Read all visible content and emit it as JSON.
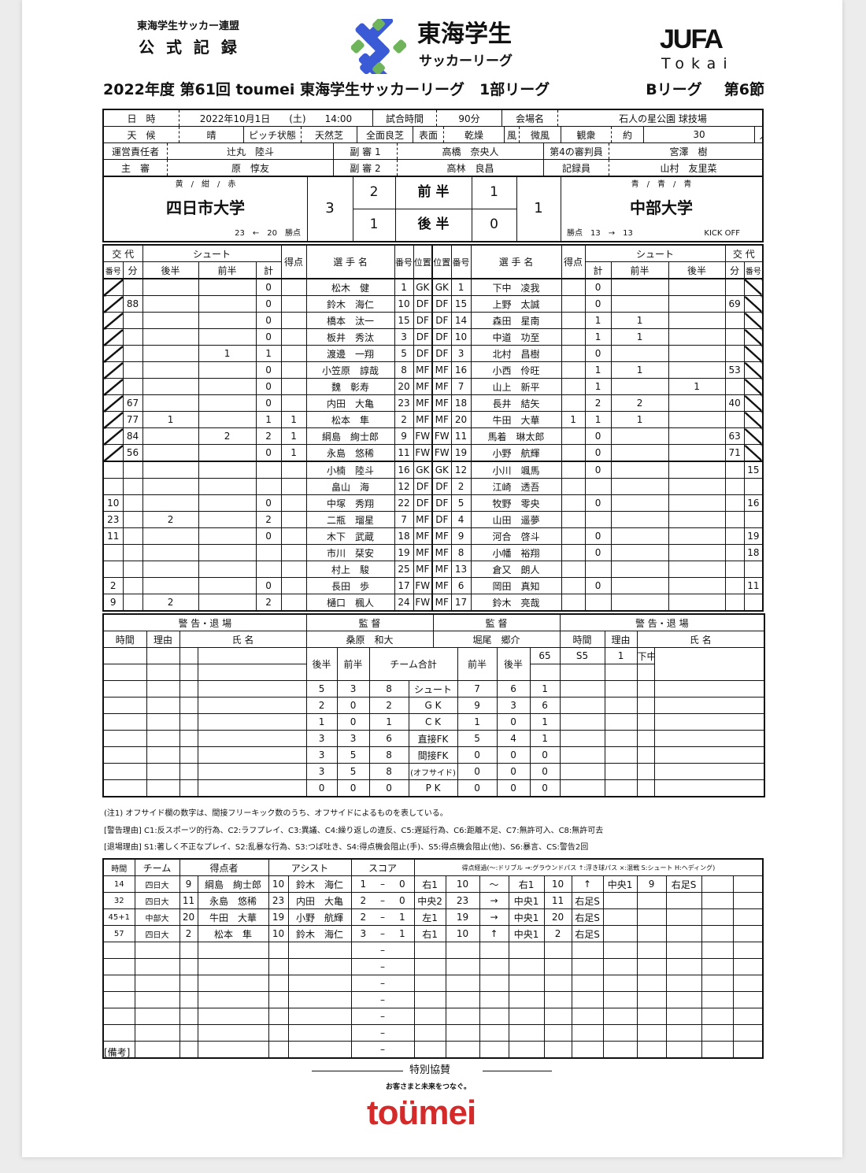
{
  "header": {
    "federation": "東海学生サッカー連盟",
    "record_title": "公 式 記 録",
    "league_logo_line1": "東海学生",
    "league_logo_line2": "サッカーリーグ",
    "jufa_logo": "JUFA",
    "jufa_sub": "Tokai",
    "title": "2022年度 第61回 toumei 東海学生サッカーリーグ　1部リーグ",
    "group": "Bリーグ",
    "round": "第6節",
    "logo_colors": {
      "blue": "#3b5bd6",
      "green": "#6fb35a"
    }
  },
  "info": {
    "date_label": "日　時",
    "date": "2022年10月1日　　(土)　　14:00",
    "duration_label": "試合時間",
    "duration": "90分",
    "venue_label": "会場名",
    "venue": "石人の星公園 球技場",
    "weather_label": "天　候",
    "weather": "晴",
    "pitch_label": "ピッチ状態",
    "pitch": "天然芝",
    "pitch_quality": "全面良芝",
    "surface_label": "表面",
    "surface": "乾燥",
    "wind_label": "風",
    "wind": "微風",
    "crowd_label": "観衆",
    "crowd_approx": "約",
    "crowd": "30",
    "crowd_unit": "人",
    "manager_label": "運営責任者",
    "manager": "辻丸　陸斗",
    "ar1_label": "副 審 1",
    "ar1": "高橋　奈央人",
    "fourth_label": "第4の審判員",
    "fourth": "宮澤　樹",
    "referee_label": "主　審",
    "referee": "原　惇友",
    "ar2_label": "副 審 2",
    "ar2": "高林　良昌",
    "recorder_label": "記録員",
    "recorder": "山村　友里菜"
  },
  "score": {
    "home_colors": "黄　/　紺　/　赤",
    "home": "四日市大学",
    "home_points": "23　←　20　勝点",
    "home_total": "3",
    "away_colors": "青　/　青　/　青",
    "away": "中部大学",
    "away_points": "勝点　13　→　13",
    "kickoff": "KICK OFF",
    "away_total": "1",
    "first_half_label": "前 半",
    "second_half_label": "後 半",
    "home_first": "2",
    "away_first": "1",
    "home_second": "1",
    "away_second": "0"
  },
  "players_header": {
    "sub": "交 代",
    "sub_no": "番号",
    "sub_min": "分",
    "shoot": "シュート",
    "second": "後半",
    "first": "前半",
    "total": "計",
    "goals": "得点",
    "name": "選 手 名",
    "num": "番号",
    "pos": "位置"
  },
  "home_players": [
    [
      "",
      "",
      "",
      "",
      "0",
      "",
      "松木　健",
      "1",
      "GK"
    ],
    [
      "",
      "88",
      "",
      "",
      "0",
      "",
      "鈴木　海仁",
      "10",
      "DF"
    ],
    [
      "",
      "",
      "",
      "",
      "0",
      "",
      "橋本　汰一",
      "15",
      "DF"
    ],
    [
      "",
      "",
      "",
      "",
      "0",
      "",
      "板井　秀汰",
      "3",
      "DF"
    ],
    [
      "",
      "",
      "",
      "1",
      "1",
      "",
      "渡邊　一翔",
      "5",
      "DF"
    ],
    [
      "",
      "",
      "",
      "",
      "0",
      "",
      "小笠原　諄哉",
      "8",
      "MF"
    ],
    [
      "",
      "",
      "",
      "",
      "0",
      "",
      "魏　彰寿",
      "20",
      "MF"
    ],
    [
      "",
      "67",
      "",
      "",
      "0",
      "",
      "内田　大亀",
      "23",
      "MF"
    ],
    [
      "",
      "77",
      "1",
      "",
      "1",
      "1",
      "松本　隼",
      "2",
      "MF"
    ],
    [
      "",
      "84",
      "",
      "2",
      "2",
      "1",
      "綱島　絢士郎",
      "9",
      "FW"
    ],
    [
      "",
      "56",
      "",
      "",
      "0",
      "1",
      "永島　悠稀",
      "11",
      "FW"
    ],
    [
      "",
      "",
      "",
      "",
      "",
      "",
      "小楠　陸斗",
      "16",
      "GK"
    ],
    [
      "",
      "",
      "",
      "",
      "",
      "",
      "畠山　海",
      "12",
      "DF"
    ],
    [
      "10",
      "",
      "",
      "",
      "0",
      "",
      "中塚　秀翔",
      "22",
      "DF"
    ],
    [
      "23",
      "",
      "2",
      "",
      "2",
      "",
      "二瓶　瑠星",
      "7",
      "MF"
    ],
    [
      "11",
      "",
      "",
      "",
      "0",
      "",
      "木下　武蔵",
      "18",
      "MF"
    ],
    [
      "",
      "",
      "",
      "",
      "",
      "",
      "市川　栞安",
      "19",
      "MF"
    ],
    [
      "",
      "",
      "",
      "",
      "",
      "",
      "村上　駿",
      "25",
      "MF"
    ],
    [
      "2",
      "",
      "",
      "",
      "0",
      "",
      "長田　歩",
      "17",
      "FW"
    ],
    [
      "9",
      "",
      "2",
      "",
      "2",
      "",
      "樋口　楓人",
      "24",
      "FW"
    ]
  ],
  "away_players": [
    [
      "GK",
      "1",
      "下中　凌我",
      "",
      "0",
      "",
      "",
      "",
      ""
    ],
    [
      "DF",
      "15",
      "上野　太誠",
      "",
      "0",
      "",
      "",
      "69",
      ""
    ],
    [
      "DF",
      "14",
      "森田　星南",
      "",
      "1",
      "1",
      "",
      "",
      ""
    ],
    [
      "DF",
      "10",
      "中道　功至",
      "",
      "1",
      "1",
      "",
      "",
      ""
    ],
    [
      "DF",
      "3",
      "北村　昌樹",
      "",
      "0",
      "",
      "",
      "",
      ""
    ],
    [
      "MF",
      "16",
      "小西　伶旺",
      "",
      "1",
      "1",
      "",
      "53",
      ""
    ],
    [
      "MF",
      "7",
      "山上　新平",
      "",
      "1",
      "",
      "1",
      "",
      ""
    ],
    [
      "MF",
      "18",
      "長井　結矢",
      "",
      "2",
      "2",
      "",
      "40",
      ""
    ],
    [
      "MF",
      "20",
      "牛田　大華",
      "1",
      "1",
      "1",
      "",
      "",
      ""
    ],
    [
      "FW",
      "11",
      "馬着　琳太郎",
      "",
      "0",
      "",
      "",
      "63",
      ""
    ],
    [
      "FW",
      "19",
      "小野　航輝",
      "",
      "0",
      "",
      "",
      "71",
      ""
    ],
    [
      "GK",
      "12",
      "小川　颯馬",
      "",
      "0",
      "",
      "",
      "",
      "15"
    ],
    [
      "DF",
      "2",
      "江崎　透吾",
      "",
      "",
      "",
      "",
      "",
      ""
    ],
    [
      "DF",
      "5",
      "牧野　零央",
      "",
      "0",
      "",
      "",
      "",
      "16"
    ],
    [
      "DF",
      "4",
      "山田　遥夢",
      "",
      "",
      "",
      "",
      "",
      ""
    ],
    [
      "MF",
      "9",
      "河合　啓斗",
      "",
      "0",
      "",
      "",
      "",
      "19"
    ],
    [
      "MF",
      "8",
      "小幡　裕翔",
      "",
      "0",
      "",
      "",
      "",
      "18"
    ],
    [
      "MF",
      "13",
      "倉又　朗人",
      "",
      "",
      "",
      "",
      "",
      ""
    ],
    [
      "MF",
      "6",
      "岡田　真知",
      "",
      "0",
      "",
      "",
      "",
      "11"
    ],
    [
      "MF",
      "17",
      "鈴木　亮哉",
      "",
      "",
      "",
      "",
      "",
      ""
    ]
  ],
  "cards": {
    "title": "警 告・退 場",
    "time": "時間",
    "reason": "理由",
    "name": "氏 名",
    "home": [],
    "away": [
      [
        "65",
        "S5",
        "1",
        "下中　凌我"
      ]
    ]
  },
  "coaches": {
    "label": "監 督",
    "home": "桑原　和大",
    "away": "堀尾　郷介"
  },
  "stats": {
    "second": "後半",
    "first": "前半",
    "team_total": "チーム合計",
    "rows": [
      [
        "5",
        "3",
        "8",
        "シュート",
        "7",
        "6",
        "1"
      ],
      [
        "2",
        "0",
        "2",
        "G K",
        "9",
        "3",
        "6"
      ],
      [
        "1",
        "0",
        "1",
        "C K",
        "1",
        "0",
        "1"
      ],
      [
        "3",
        "3",
        "6",
        "直接FK",
        "5",
        "4",
        "1"
      ],
      [
        "3",
        "5",
        "8",
        "間接FK",
        "0",
        "0",
        "0"
      ],
      [
        "3",
        "5",
        "8",
        "(オフサイド)",
        "0",
        "0",
        "0"
      ],
      [
        "0",
        "0",
        "0",
        "P K",
        "0",
        "0",
        "0"
      ]
    ]
  },
  "notes": [
    "(注1) オフサイド欄の数字は、間接フリーキック数のうち、オフサイドによるものを表している。",
    "[警告理由] C1:反スポーツ的行為、C2:ラフプレイ、C3:異議、C4:繰り返しの違反、C5:遅延行為、C6:距離不足、C7:無許可入、C8:無許可去",
    "[退場理由] S1:著しく不正なプレイ、S2:乱暴な行為、S3:つば吐き、S4:得点機会阻止(手)、S5:得点機会阻止(他)、S6:暴言、CS:警告2回"
  ],
  "goals": {
    "time": "時間",
    "team": "チーム",
    "scorer": "得点者",
    "assist": "アシスト",
    "score": "スコア",
    "process": "得点経過(〜:ドリブル →:グラウンドパス ↑:浮き球パス ×:混戦 S:シュート H:ヘディング)",
    "rows": [
      [
        "14",
        "四日大",
        "9",
        "綱島　絢士郎",
        "10",
        "鈴木　海仁",
        "1",
        "0",
        [
          "右1",
          "10",
          "〜",
          "右1",
          "10",
          "↑",
          "中央1",
          "9",
          "右足S",
          "",
          ""
        ]
      ],
      [
        "32",
        "四日大",
        "11",
        "永島　悠稀",
        "23",
        "内田　大亀",
        "2",
        "0",
        [
          "中央2",
          "23",
          "→",
          "中央1",
          "11",
          "右足S",
          "",
          "",
          "",
          "",
          ""
        ]
      ],
      [
        "45+1",
        "中部大",
        "20",
        "牛田　大華",
        "19",
        "小野　航輝",
        "2",
        "1",
        [
          "左1",
          "19",
          "→",
          "中央1",
          "20",
          "右足S",
          "",
          "",
          "",
          "",
          ""
        ]
      ],
      [
        "57",
        "四日大",
        "2",
        "松本　隼",
        "10",
        "鈴木　海仁",
        "3",
        "1",
        [
          "右1",
          "10",
          "↑",
          "中央1",
          "2",
          "右足S",
          "",
          "",
          "",
          "",
          ""
        ]
      ]
    ],
    "empty_rows": 7,
    "dash": "–"
  },
  "footer": {
    "remarks": "[備考]",
    "sponsor_label": "特別協賛",
    "sponsor_tagline": "お客さまと未来をつなぐ。",
    "sponsor_logo": "toümei",
    "sponsor_color": "#d42a2a"
  }
}
